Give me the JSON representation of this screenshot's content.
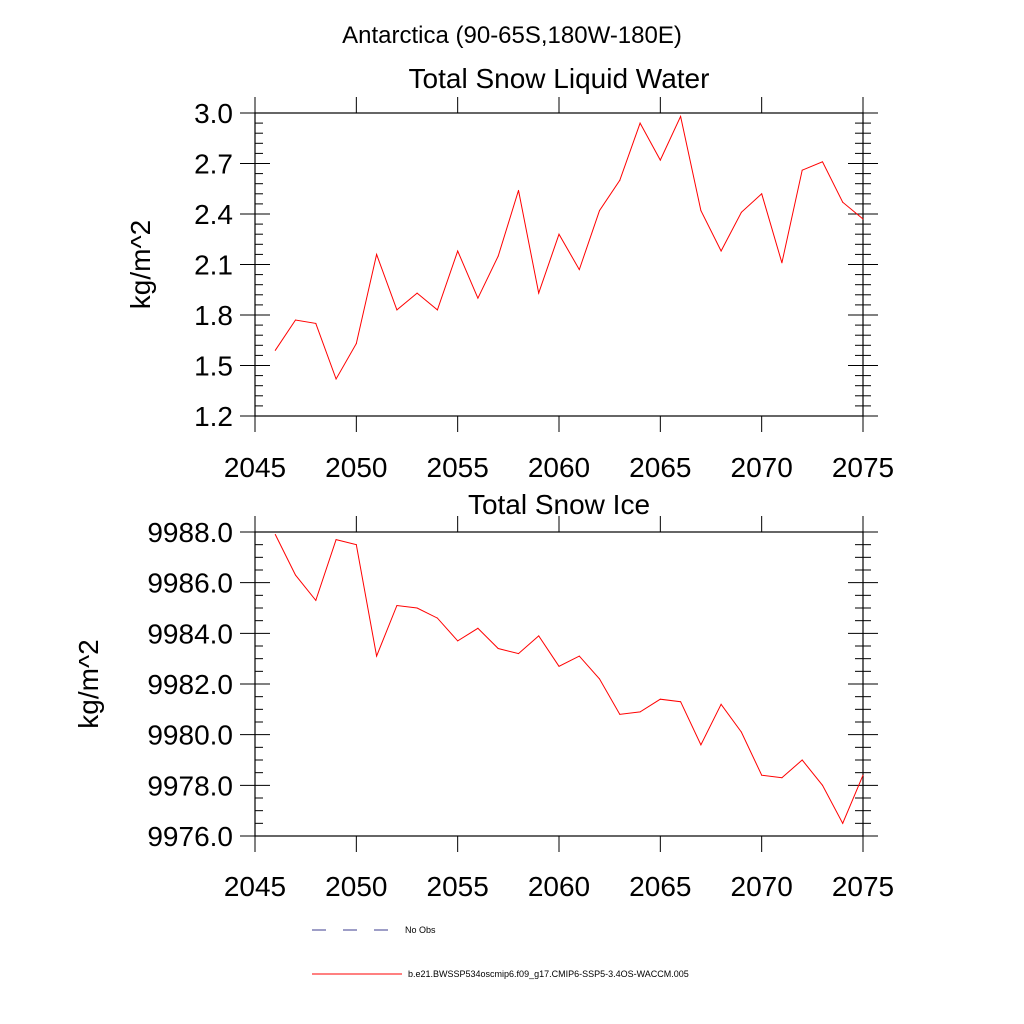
{
  "figure_title": "Antarctica (90-65S,180W-180E)",
  "legend": [
    {
      "label": "No Obs",
      "style": "dashed",
      "color": "#3d3d8f"
    },
    {
      "label": "b.e21.BWSSP534oscmip6.f09_g17.CMIP6-SSP5-3.4OS-WACCM.005",
      "style": "solid",
      "color": "#ff0000"
    }
  ],
  "chart_data": [
    {
      "type": "line",
      "title": "Total Snow Liquid Water",
      "xlabel": "",
      "ylabel": "kg/m^2",
      "xlim": [
        2045,
        2075
      ],
      "ylim": [
        1.2,
        3.0
      ],
      "x_ticks": [
        2045,
        2050,
        2055,
        2060,
        2065,
        2070,
        2075
      ],
      "x_tick_labels": [
        "2045",
        "2050",
        "2055",
        "2060",
        "2065",
        "2070",
        "2075"
      ],
      "y_ticks": [
        1.2,
        1.5,
        1.8,
        2.1,
        2.4,
        2.7,
        3.0
      ],
      "y_tick_labels": [
        "1.2",
        "1.5",
        "1.8",
        "2.1",
        "2.4",
        "2.7",
        "3.0"
      ],
      "series": [
        {
          "name": "b.e21.BWSSP534oscmip6.f09_g17.CMIP6-SSP5-3.4OS-WACCM.005",
          "color": "#ff0000",
          "x": [
            2046,
            2047,
            2048,
            2049,
            2050,
            2051,
            2052,
            2053,
            2054,
            2055,
            2056,
            2057,
            2058,
            2059,
            2060,
            2061,
            2062,
            2063,
            2064,
            2065,
            2066,
            2067,
            2068,
            2069,
            2070,
            2071,
            2072,
            2073,
            2074,
            2075
          ],
          "values": [
            1.59,
            1.77,
            1.75,
            1.42,
            1.63,
            2.16,
            1.83,
            1.93,
            1.83,
            2.18,
            1.9,
            2.15,
            2.54,
            1.93,
            2.28,
            2.07,
            2.42,
            2.6,
            2.94,
            2.72,
            2.98,
            2.42,
            2.18,
            2.41,
            2.52,
            2.11,
            2.66,
            2.71,
            2.47,
            2.37
          ]
        }
      ]
    },
    {
      "type": "line",
      "title": "Total Snow Ice",
      "xlabel": "",
      "ylabel": "kg/m^2",
      "xlim": [
        2045,
        2075
      ],
      "ylim": [
        9976.0,
        9988.0
      ],
      "x_ticks": [
        2045,
        2050,
        2055,
        2060,
        2065,
        2070,
        2075
      ],
      "x_tick_labels": [
        "2045",
        "2050",
        "2055",
        "2060",
        "2065",
        "2070",
        "2075"
      ],
      "y_ticks": [
        9976.0,
        9978.0,
        9980.0,
        9982.0,
        9984.0,
        9986.0,
        9988.0
      ],
      "y_tick_labels": [
        "9976.0",
        "9978.0",
        "9980.0",
        "9982.0",
        "9984.0",
        "9986.0",
        "9988.0"
      ],
      "series": [
        {
          "name": "b.e21.BWSSP534oscmip6.f09_g17.CMIP6-SSP5-3.4OS-WACCM.005",
          "color": "#ff0000",
          "x": [
            2046,
            2047,
            2048,
            2049,
            2050,
            2051,
            2052,
            2053,
            2054,
            2055,
            2056,
            2057,
            2058,
            2059,
            2060,
            2061,
            2062,
            2063,
            2064,
            2065,
            2066,
            2067,
            2068,
            2069,
            2070,
            2071,
            2072,
            2073,
            2074,
            2075
          ],
          "values": [
            9987.9,
            9986.3,
            9985.3,
            9987.7,
            9987.5,
            9983.1,
            9985.1,
            9985.0,
            9984.6,
            9983.7,
            9984.2,
            9983.4,
            9983.2,
            9983.9,
            9982.7,
            9983.1,
            9982.2,
            9980.8,
            9980.9,
            9981.4,
            9981.3,
            9979.6,
            9981.2,
            9980.1,
            9978.4,
            9978.3,
            9979.0,
            9978.0,
            9976.5,
            9978.4
          ]
        }
      ]
    }
  ]
}
